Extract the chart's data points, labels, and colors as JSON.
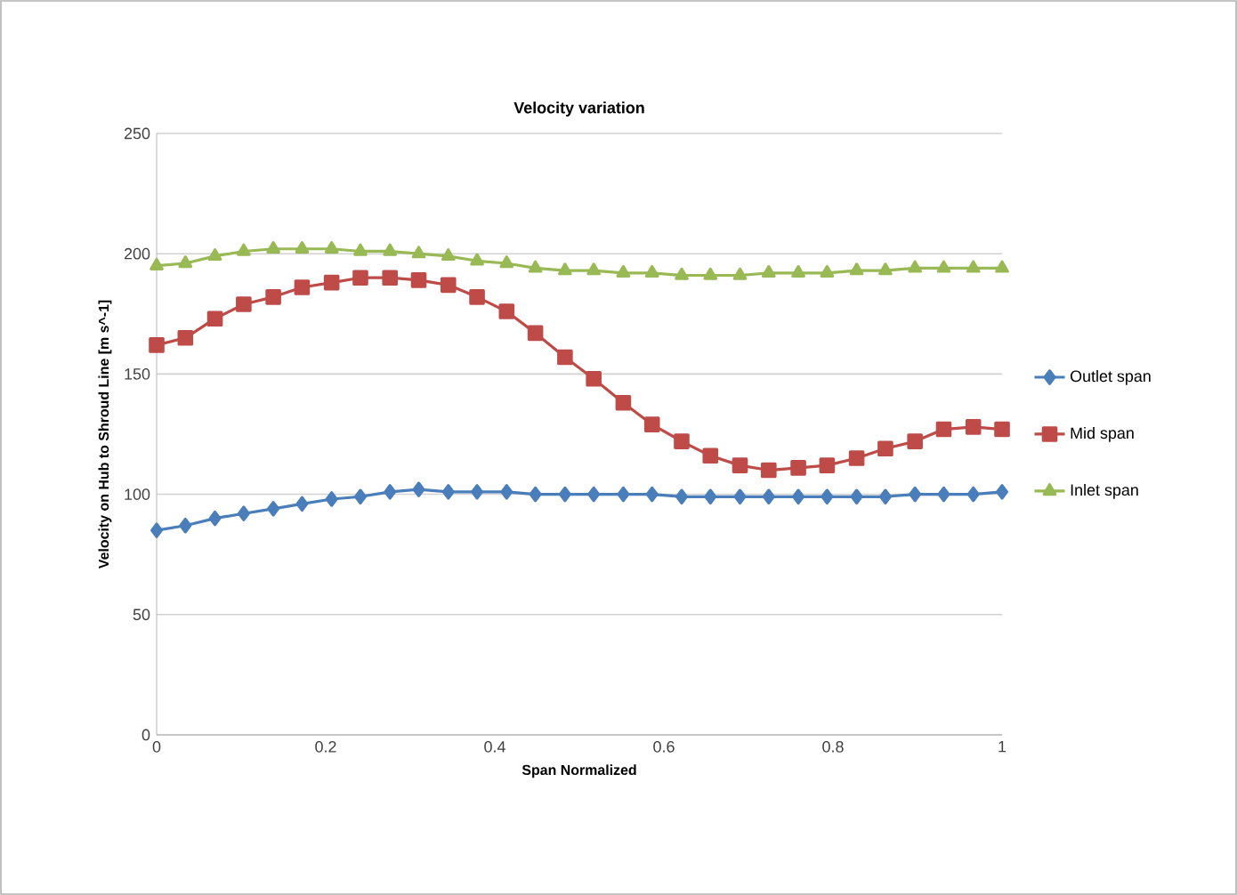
{
  "chart_data": {
    "type": "line",
    "title": "Velocity variation",
    "xlabel": "Span Normalized",
    "ylabel": "Velocity on Hub to Shroud Line [m s^-1]",
    "x": [
      0,
      0.034,
      0.069,
      0.103,
      0.138,
      0.172,
      0.207,
      0.241,
      0.276,
      0.31,
      0.345,
      0.379,
      0.414,
      0.448,
      0.483,
      0.517,
      0.552,
      0.586,
      0.621,
      0.655,
      0.69,
      0.724,
      0.759,
      0.793,
      0.828,
      0.862,
      0.897,
      0.931,
      0.966,
      1
    ],
    "series": [
      {
        "name": "Outlet span",
        "color": "#4a7ebb",
        "marker": "diamond",
        "values": [
          85,
          87,
          90,
          92,
          94,
          96,
          98,
          99,
          101,
          102,
          101,
          101,
          101,
          100,
          100,
          100,
          100,
          100,
          99,
          99,
          99,
          99,
          99,
          99,
          99,
          99,
          100,
          100,
          100,
          101
        ]
      },
      {
        "name": "Mid span",
        "color": "#be4b48",
        "marker": "square",
        "values": [
          162,
          165,
          173,
          179,
          182,
          186,
          188,
          190,
          190,
          189,
          187,
          182,
          176,
          167,
          157,
          148,
          138,
          129,
          122,
          116,
          112,
          110,
          111,
          112,
          115,
          119,
          122,
          127,
          128,
          127
        ]
      },
      {
        "name": "Inlet span",
        "color": "#98b954",
        "marker": "triangle",
        "values": [
          195,
          196,
          199,
          201,
          202,
          202,
          202,
          201,
          201,
          200,
          199,
          197,
          196,
          194,
          193,
          193,
          192,
          192,
          191,
          191,
          191,
          192,
          192,
          192,
          193,
          193,
          194,
          194,
          194,
          194
        ]
      }
    ],
    "xlim": [
      0,
      1
    ],
    "xticks": [
      0,
      0.2,
      0.4,
      0.6,
      0.8,
      1
    ],
    "ylim": [
      0,
      250
    ],
    "yticks": [
      0,
      50,
      100,
      150,
      200,
      250
    ],
    "grid": "y",
    "legend": "right",
    "line_style": "solid"
  }
}
